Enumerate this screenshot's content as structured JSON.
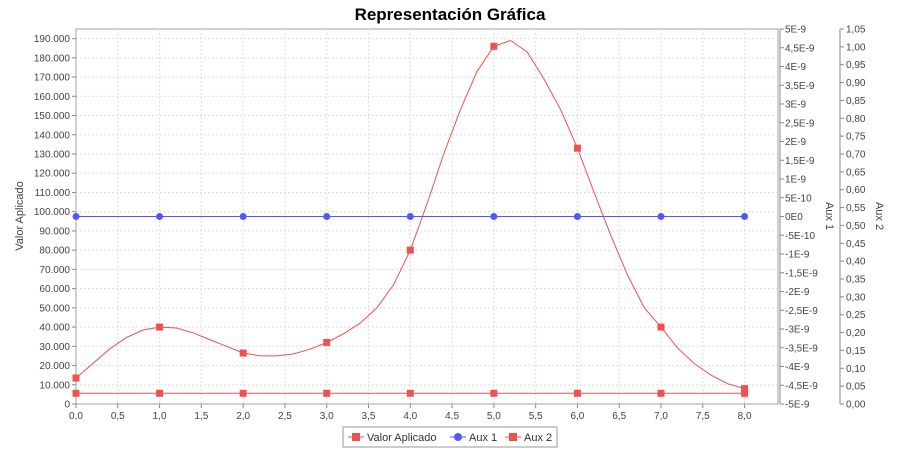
{
  "chart_data": {
    "type": "line",
    "title": "Representación Gráfica",
    "xlabel": "",
    "ylabel": "Valor Aplicado",
    "y2label": "Aux 1",
    "y3label": "Aux 2",
    "xlim": [
      0,
      8.4
    ],
    "ylim": [
      0,
      195000
    ],
    "y2lim": [
      -5e-09,
      5e-09
    ],
    "y3lim": [
      0,
      1.05
    ],
    "grid": true,
    "legend_position": "bottom",
    "x_ticks": [
      "0,0",
      "0,5",
      "1,0",
      "1,5",
      "2,0",
      "2,5",
      "3,0",
      "3,5",
      "4,0",
      "4,5",
      "5,0",
      "5,5",
      "6,0",
      "6,5",
      "7,0",
      "7,5",
      "8,0"
    ],
    "x_tick_values": [
      0,
      0.5,
      1,
      1.5,
      2,
      2.5,
      3,
      3.5,
      4,
      4.5,
      5,
      5.5,
      6,
      6.5,
      7,
      7.5,
      8
    ],
    "y_ticks": [
      "0",
      "10.000",
      "20.000",
      "30.000",
      "40.000",
      "50.000",
      "60.000",
      "70.000",
      "80.000",
      "90.000",
      "100.000",
      "110.000",
      "120.000",
      "130.000",
      "140.000",
      "150.000",
      "160.000",
      "170.000",
      "180.000",
      "190.000"
    ],
    "y_tick_values": [
      0,
      10000,
      20000,
      30000,
      40000,
      50000,
      60000,
      70000,
      80000,
      90000,
      100000,
      110000,
      120000,
      130000,
      140000,
      150000,
      160000,
      170000,
      180000,
      190000
    ],
    "y2_ticks": [
      "-5E-9",
      "-4,5E-9",
      "-4E-9",
      "-3,5E-9",
      "-3E-9",
      "-2,5E-9",
      "-2E-9",
      "-1,5E-9",
      "-1E-9",
      "-5E-10",
      "0E0",
      "5E-10",
      "1E-9",
      "1,5E-9",
      "2E-9",
      "2,5E-9",
      "3E-9",
      "3,5E-9",
      "4E-9",
      "4,5E-9",
      "5E-9"
    ],
    "y2_tick_values": [
      -5e-09,
      -4.5e-09,
      -4e-09,
      -3.5e-09,
      -3e-09,
      -2.5e-09,
      -2e-09,
      -1.5e-09,
      -1e-09,
      -5e-10,
      0,
      5e-10,
      1e-09,
      1.5e-09,
      2e-09,
      2.5e-09,
      3e-09,
      3.5e-09,
      4e-09,
      4.5e-09,
      5e-09
    ],
    "y3_ticks": [
      "0,00",
      "0,05",
      "0,10",
      "0,15",
      "0,20",
      "0,25",
      "0,30",
      "0,35",
      "0,40",
      "0,45",
      "0,50",
      "0,55",
      "0,60",
      "0,65",
      "0,70",
      "0,75",
      "0,80",
      "0,85",
      "0,90",
      "0,95",
      "1,00",
      "1,05"
    ],
    "y3_tick_values": [
      0,
      0.05,
      0.1,
      0.15,
      0.2,
      0.25,
      0.3,
      0.35,
      0.4,
      0.45,
      0.5,
      0.55,
      0.6,
      0.65,
      0.7,
      0.75,
      0.8,
      0.85,
      0.9,
      0.95,
      1.0,
      1.05
    ],
    "series": [
      {
        "name": "Valor Aplicado",
        "axis": "y",
        "color": "#f05050",
        "marker": "square",
        "points_x": [
          0,
          1,
          2,
          3,
          4,
          5,
          6,
          7,
          8
        ],
        "points_y": [
          13500,
          40000,
          26500,
          32000,
          80000,
          186000,
          133000,
          40000,
          8000
        ],
        "curve_x": [
          0,
          0.2,
          0.4,
          0.6,
          0.8,
          1.0,
          1.2,
          1.4,
          1.6,
          1.8,
          2.0,
          2.2,
          2.4,
          2.6,
          2.8,
          3.0,
          3.2,
          3.4,
          3.6,
          3.8,
          4.0,
          4.2,
          4.4,
          4.6,
          4.8,
          5.0,
          5.2,
          5.4,
          5.6,
          5.8,
          6.0,
          6.2,
          6.4,
          6.6,
          6.8,
          7.0,
          7.2,
          7.4,
          7.6,
          7.8,
          8.0
        ],
        "curve_y": [
          13500,
          21000,
          28500,
          34500,
          38500,
          40000,
          39500,
          37000,
          33500,
          30000,
          26500,
          25000,
          25000,
          26000,
          28500,
          32000,
          36500,
          42000,
          50000,
          62000,
          80000,
          104000,
          130000,
          153000,
          173000,
          186000,
          189000,
          183000,
          169000,
          153000,
          133000,
          110000,
          87500,
          67000,
          50000,
          40000,
          29000,
          21000,
          15000,
          10500,
          8000
        ]
      },
      {
        "name": "Aux 1",
        "axis": "y2",
        "color": "#5555ff",
        "marker": "circle",
        "points_x": [
          0,
          1,
          2,
          3,
          4,
          5,
          6,
          7,
          8
        ],
        "points_y": [
          0,
          0,
          0,
          0,
          0,
          0,
          0,
          0,
          0
        ]
      },
      {
        "name": "Aux 2",
        "axis": "y3",
        "color": "#f05050",
        "marker": "square",
        "points_x": [
          0,
          1,
          2,
          3,
          4,
          5,
          6,
          7,
          8
        ],
        "points_y": [
          0.03,
          0.03,
          0.03,
          0.03,
          0.03,
          0.03,
          0.03,
          0.03,
          0.03
        ]
      }
    ]
  }
}
